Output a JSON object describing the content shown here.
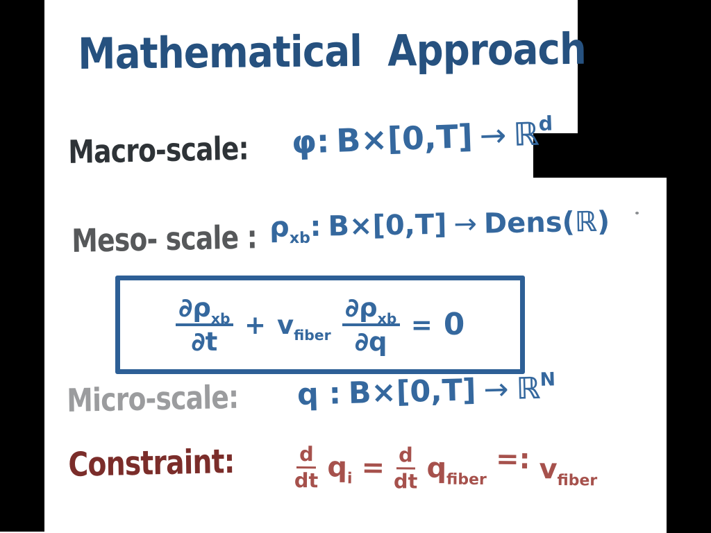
{
  "title": "Mathematical Approach",
  "colors": {
    "background": "#000000",
    "paper": "#ffffff",
    "title_blue": "#26517f",
    "equation_blue": "#35689e",
    "box_blue": "#2d5f96",
    "macro_label": "#2e3337",
    "meso_label": "#56585a",
    "micro_label": "#9b9c9e",
    "constraint_label": "#7b2d2a",
    "constraint_red": "#a6514c"
  },
  "macro": {
    "label": "Macro-scale:",
    "func": "φ",
    "colon": ":",
    "domain": "B×[0,T]",
    "arrow": "→",
    "codomain": "ℝ",
    "sup": "d"
  },
  "meso": {
    "label": "Meso- scale :",
    "func": "ρ",
    "func_sub": "xb",
    "colon": ":",
    "domain": "B×[0,T]",
    "arrow": "→",
    "codomain": "Dens(ℝ)"
  },
  "box_equation": {
    "num1": "∂ρ",
    "num1_sub": "xb",
    "den1": "∂t",
    "plus": "+",
    "v": "v",
    "v_sub": "fiber",
    "num2": "∂ρ",
    "num2_sub": "xb",
    "den2": "∂q",
    "equals": "=",
    "rhs": "0"
  },
  "micro": {
    "label": "Micro-scale:",
    "func": "q",
    "colon": ":",
    "domain": "B×[0,T]",
    "arrow": "→",
    "codomain": "ℝ",
    "sup": "N"
  },
  "constraint": {
    "label": "Constraint:",
    "frac1_num": "d",
    "frac1_den": "dt",
    "q1": "q",
    "q1_sub": "i",
    "eq1": "=",
    "frac2_num": "d",
    "frac2_den": "dt",
    "q2": "q",
    "q2_sub": "fiber",
    "eq2": "=:",
    "v": "v",
    "v_sub": "fiber"
  }
}
